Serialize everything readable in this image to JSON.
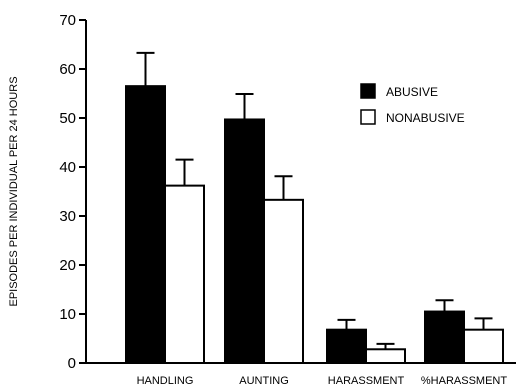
{
  "chart_data": {
    "type": "bar",
    "title": "",
    "xlabel": "",
    "ylabel": "EPISODES PER INDIVIDUAL PER 24 HOURS",
    "ylim": [
      0,
      70
    ],
    "yticks": [
      0,
      10,
      20,
      30,
      40,
      50,
      60,
      70
    ],
    "categories": [
      "HANDLING",
      "AUNTING",
      "HARASSMENT",
      "%HARASSMENT"
    ],
    "series": [
      {
        "name": "ABUSIVE",
        "values": [
          56.5,
          49.7,
          6.8,
          10.5
        ],
        "errors": [
          6.8,
          5.2,
          2.0,
          2.3
        ],
        "color": "#000000"
      },
      {
        "name": "NONABUSIVE",
        "values": [
          36.2,
          33.3,
          2.8,
          6.8
        ],
        "errors": [
          5.3,
          4.8,
          1.1,
          2.3
        ],
        "color": "#ffffff"
      }
    ],
    "grid": false,
    "legend": "right"
  }
}
